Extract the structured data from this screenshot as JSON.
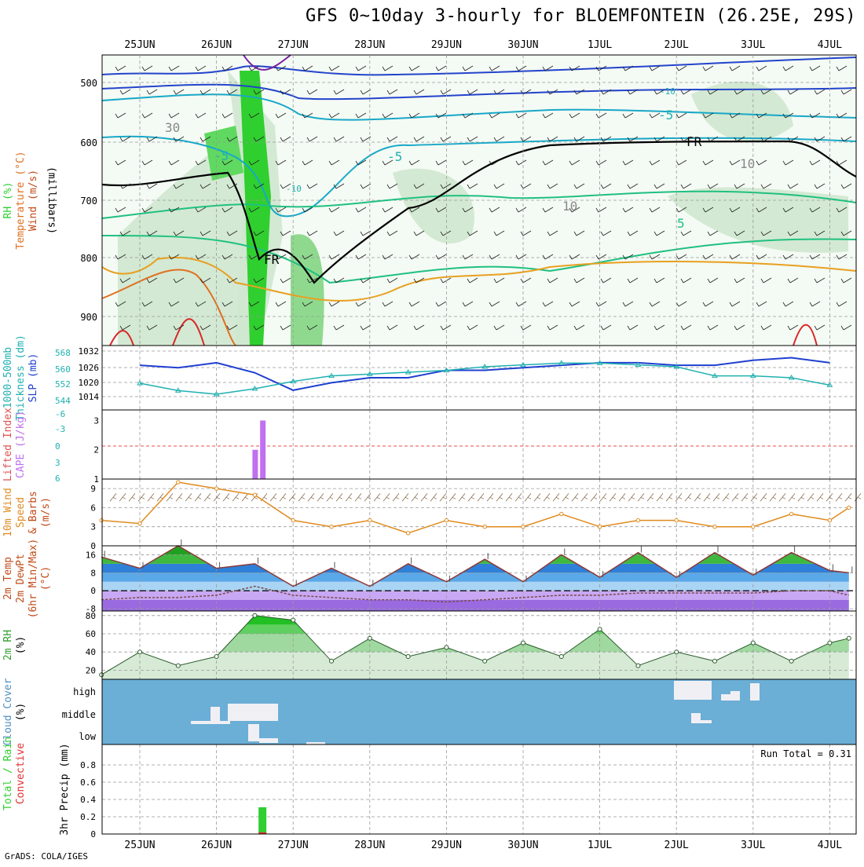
{
  "title": "GFS 0~10day 3-hourly for BLOEMFONTEIN (26.25E, 29S)",
  "footer": "GrADS: COLA/IGES",
  "dates": [
    "25JUN",
    "26JUN",
    "27JUN",
    "28JUN",
    "29JUN",
    "30JUN",
    "1JUL",
    "2JUL",
    "3JUL",
    "4JUL"
  ],
  "panels": {
    "upper": {
      "left_labels": [
        "RH (%)",
        "Temperature (°C)",
        "Wind (m/s)"
      ],
      "axis_label": "(millibars)",
      "yticks": [
        "500",
        "600",
        "700",
        "800",
        "900"
      ],
      "contour_labels": [
        "-10",
        "-5",
        "-5",
        "-10",
        "-5",
        "5",
        "FR",
        "FR",
        "30",
        "10",
        "10"
      ]
    },
    "thick": {
      "left_labels": [
        "1000-500mb",
        "Thickness (dm)",
        "SLP (mb)"
      ],
      "yticks_left": [
        "568",
        "560",
        "552",
        "544"
      ],
      "yticks_right": [
        "1032",
        "1026",
        "1020",
        "1014"
      ]
    },
    "cape": {
      "left_labels": [
        "Lifted Index",
        "CAPE (J/kg)"
      ],
      "yticks_left": [
        "-6",
        "-3",
        "0",
        "3",
        "6"
      ],
      "yticks_right": [
        "3",
        "2",
        "1"
      ]
    },
    "wind": {
      "left_labels": [
        "10m Wind",
        "Speed",
        "& Barbs",
        "(m/s)"
      ],
      "yticks": [
        "9",
        "6",
        "3",
        "0"
      ]
    },
    "temp": {
      "left_labels": [
        "2m Temp",
        "2m DewPt",
        "(6hr Min/Max)",
        "(°C)"
      ],
      "yticks": [
        "16",
        "8",
        "0",
        "-8"
      ]
    },
    "rh": {
      "left_labels": [
        "2m RH",
        "(%)"
      ],
      "yticks": [
        "80",
        "60",
        "40",
        "20"
      ]
    },
    "cloud": {
      "left_labels": [
        "Cloud Cover",
        "(%)"
      ],
      "levels": [
        "high",
        "middle",
        "low"
      ]
    },
    "precip": {
      "left_labels": [
        "Total / Rain",
        "Convective",
        "3hr Precip (mm)"
      ],
      "yticks": [
        "0.8",
        "0.6",
        "0.4",
        "0.2",
        "0"
      ],
      "run_total": "Run Total = 0.31"
    }
  },
  "colors": {
    "rh_green": "#2fcf2f",
    "cloud_blue": "#6baed6",
    "slp_line": "#1f3fd0",
    "thickness_line": "#20b0b0",
    "wind_speed": "#e08a1e",
    "cape_bar": "#c070f0",
    "lifted_index": "#e05050",
    "precip_total": "#2fcf2f",
    "precip_conv": "#e03030"
  },
  "chart_data": [
    {
      "type": "line",
      "title": "1000-500mb Thickness (dm) and SLP (mb)",
      "x": [
        "25JUN",
        "25.5",
        "26JUN",
        "26.5",
        "27JUN",
        "27.5",
        "28JUN",
        "28.5",
        "29JUN",
        "29.5",
        "30JUN",
        "30.5",
        "1JUL",
        "1.5",
        "2JUL",
        "2.5",
        "3JUL",
        "3.5",
        "4JUL"
      ],
      "series": [
        {
          "name": "SLP (mb)",
          "values": [
            1026,
            1025,
            1027,
            1023,
            1016,
            1019,
            1021,
            1021,
            1024,
            1024,
            1025,
            1026,
            1027,
            1027,
            1026,
            1026,
            1028,
            1029,
            1027
          ]
        },
        {
          "name": "1000-500mb Thickness (dm)",
          "values": [
            552,
            548,
            546,
            549,
            553,
            556,
            557,
            558,
            559,
            561,
            562,
            563,
            563,
            562,
            561,
            556,
            556,
            555,
            551
          ]
        }
      ],
      "ylim": [
        540,
        570
      ]
    },
    {
      "type": "bar",
      "title": "CAPE (J/kg)",
      "x": [
        "26.5",
        "26.6"
      ],
      "values": [
        2.0,
        3.0
      ],
      "ylim": [
        1,
        3.2
      ]
    },
    {
      "type": "line",
      "title": "10m Wind Speed (m/s)",
      "x": [
        "24.5",
        "25JUN",
        "25.5",
        "26JUN",
        "26.5",
        "27JUN",
        "27.5",
        "28JUN",
        "28.5",
        "29JUN",
        "29.5",
        "30JUN",
        "30.5",
        "1JUL",
        "1.5",
        "2JUL",
        "2.5",
        "3JUL",
        "3.5",
        "4JUL",
        "4.25"
      ],
      "values": [
        4,
        3.5,
        10,
        9,
        8,
        4,
        3,
        4,
        2,
        4,
        3,
        3,
        5,
        3,
        4,
        4,
        3,
        3,
        5,
        4,
        6
      ],
      "ylim": [
        0,
        10
      ]
    },
    {
      "type": "line",
      "title": "2m Temp / DewPt (°C)",
      "x": [
        "24.5",
        "25JUN",
        "25.5",
        "26JUN",
        "26.5",
        "27JUN",
        "27.5",
        "28JUN",
        "28.5",
        "29JUN",
        "29.5",
        "30JUN",
        "30.5",
        "1JUL",
        "1.5",
        "2JUL",
        "2.5",
        "3JUL",
        "3.5",
        "4JUL",
        "4.25"
      ],
      "series": [
        {
          "name": "2m Temp",
          "values": [
            15,
            10,
            20,
            10,
            12,
            2,
            10,
            2,
            12,
            4,
            14,
            4,
            16,
            6,
            17,
            6,
            17,
            7,
            17,
            9,
            8
          ]
        },
        {
          "name": "2m DewPt",
          "values": [
            -4,
            -3,
            -3,
            -2,
            2,
            -2,
            -3,
            -4,
            -4,
            -5,
            -4,
            -3,
            -2,
            -2,
            -1,
            -1,
            -1,
            -1,
            0,
            0,
            -2
          ]
        }
      ],
      "ylim": [
        -9,
        20
      ]
    },
    {
      "type": "area",
      "title": "2m RH (%)",
      "x": [
        "24.5",
        "25JUN",
        "25.5",
        "26JUN",
        "26.5",
        "27JUN",
        "27.5",
        "28JUN",
        "28.5",
        "29JUN",
        "29.5",
        "30JUN",
        "30.5",
        "1JUL",
        "1.5",
        "2JUL",
        "2.5",
        "3JUL",
        "3.5",
        "4JUL",
        "4.25"
      ],
      "values": [
        15,
        40,
        25,
        35,
        80,
        75,
        30,
        55,
        35,
        45,
        30,
        50,
        35,
        65,
        25,
        40,
        30,
        50,
        30,
        50,
        55
      ],
      "ylim": [
        10,
        85
      ]
    },
    {
      "type": "bar",
      "title": "3hr Precip (mm)",
      "x": [
        "26.6"
      ],
      "series": [
        {
          "name": "Total / Rain",
          "values": [
            0.31
          ]
        },
        {
          "name": "Convective",
          "values": [
            0.02
          ]
        }
      ],
      "ylim": [
        0,
        1.0
      ]
    }
  ]
}
